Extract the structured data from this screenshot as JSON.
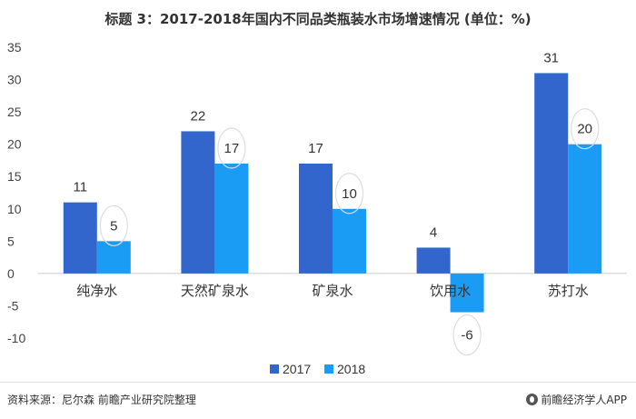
{
  "chart_data": {
    "type": "bar",
    "title": "标题 3：2017-2018年国内不同品类瓶装水市场增速情况 (单位：%)",
    "categories": [
      "纯净水",
      "天然矿泉水",
      "矿泉水",
      "饮用水",
      "苏打水"
    ],
    "series": [
      {
        "name": "2017",
        "values": [
          11,
          22,
          17,
          4,
          31
        ],
        "color": "#3366cc"
      },
      {
        "name": "2018",
        "values": [
          5,
          17,
          10,
          -6,
          20
        ],
        "color": "#1a9cf5"
      }
    ],
    "yticks": [
      35,
      30,
      25,
      20,
      15,
      10,
      5,
      0,
      -5,
      -10
    ],
    "ylim": [
      -10,
      35
    ],
    "grid": false,
    "legend_position": "bottom"
  },
  "footer": {
    "source": "资料来源：尼尔森 前瞻产业研究院整理",
    "brand": "前瞻经济学人APP",
    "brand_icon": "qianzhan-logo-icon"
  }
}
